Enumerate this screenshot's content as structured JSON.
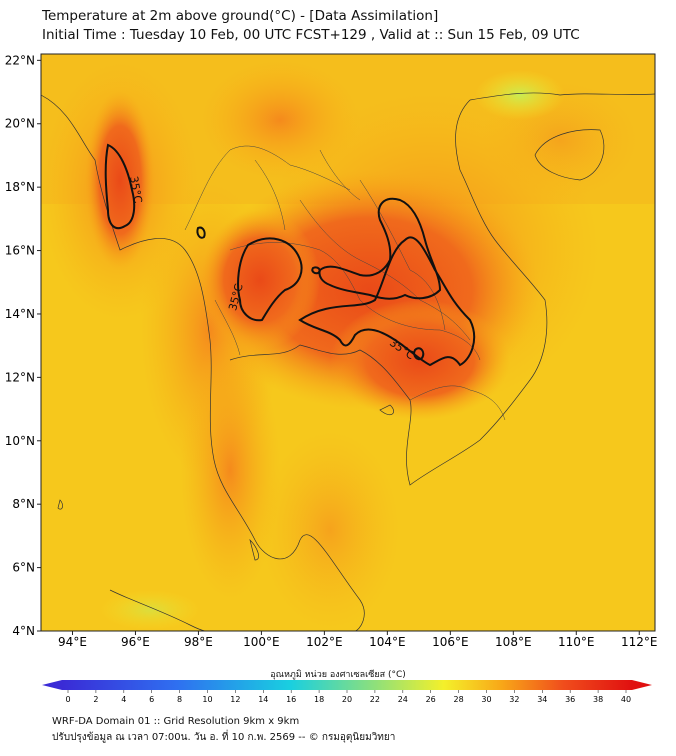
{
  "header": {
    "title_line1": "Temperature at 2m above ground(°C) - [Data Assimilation]",
    "title_line2": "Initial Time : Tuesday 10 Feb, 00 UTC FCST+129 , Valid at :: Sun 15 Feb, 09 UTC"
  },
  "map": {
    "lon_range": [
      93,
      112.5
    ],
    "lat_range": [
      4,
      22.2
    ],
    "lon_ticks": [
      "94°E",
      "96°E",
      "98°E",
      "100°E",
      "102°E",
      "104°E",
      "106°E",
      "108°E",
      "110°E",
      "112°E"
    ],
    "lat_ticks": [
      "22°N",
      "20°N",
      "18°N",
      "16°N",
      "14°N",
      "12°N",
      "10°N",
      "8°N",
      "6°N",
      "4°N"
    ],
    "contour_labels": [
      "35°C",
      "35°C",
      "35°C"
    ],
    "contour_value_c": 35
  },
  "colorbar": {
    "title": "อุณหภูมิ หน่วย องศาเซลเซียส (°C)",
    "ticks": [
      "0",
      "2",
      "4",
      "6",
      "8",
      "10",
      "12",
      "14",
      "16",
      "18",
      "20",
      "22",
      "24",
      "26",
      "28",
      "30",
      "32",
      "34",
      "36",
      "38",
      "40"
    ],
    "colors": {
      "c0": "#3a2bd6",
      "c8": "#2f6ff0",
      "c16": "#19cfe0",
      "c22": "#8fe07a",
      "c27": "#f4f02a",
      "c31": "#f8a818",
      "c35": "#f04d1c",
      "c40": "#e01010"
    }
  },
  "footer": {
    "line1": "WRF-DA Domain 01 :: Grid Resolution 9km x 9km",
    "line2": "ปรับปรุงข้อมูล ณ เวลา 07:00น. วัน อ. ที่ 10 ก.พ. 2569 -- © กรมอุตุนิยมวิทยา"
  }
}
